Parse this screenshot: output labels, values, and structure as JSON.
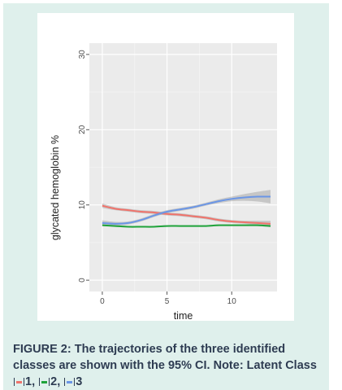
{
  "chart_data": {
    "type": "line",
    "xlabel": "time",
    "ylabel": "glycated hemoglobin %",
    "xlim": [
      -1,
      13.5
    ],
    "ylim": [
      -1.5,
      31.5
    ],
    "xticks": [
      0,
      5,
      10
    ],
    "yticks": [
      0,
      10,
      20,
      30
    ],
    "grid": true,
    "confidence_band": "95% CI",
    "series": [
      {
        "name": "1",
        "color": "#f0736b",
        "x": [
          0,
          1,
          2,
          3,
          4,
          5,
          6,
          7,
          8,
          9,
          10,
          11,
          12,
          13
        ],
        "values": [
          9.9,
          9.5,
          9.3,
          9.1,
          9.0,
          8.8,
          8.7,
          8.5,
          8.3,
          8.0,
          7.8,
          7.7,
          7.6,
          7.5
        ],
        "ci_halfwidth": [
          0.3,
          0.2,
          0.2,
          0.2,
          0.2,
          0.2,
          0.2,
          0.2,
          0.2,
          0.2,
          0.2,
          0.2,
          0.3,
          0.4
        ]
      },
      {
        "name": "2",
        "color": "#1fa33a",
        "x": [
          0,
          1,
          2,
          3,
          4,
          5,
          6,
          7,
          8,
          9,
          10,
          11,
          12,
          13
        ],
        "values": [
          7.3,
          7.2,
          7.1,
          7.1,
          7.1,
          7.2,
          7.2,
          7.2,
          7.2,
          7.3,
          7.3,
          7.3,
          7.3,
          7.2
        ],
        "ci_halfwidth": [
          0.1,
          0.1,
          0.1,
          0.1,
          0.1,
          0.1,
          0.1,
          0.1,
          0.1,
          0.1,
          0.1,
          0.1,
          0.1,
          0.15
        ]
      },
      {
        "name": "3",
        "color": "#6b96e6",
        "x": [
          0,
          1,
          2,
          3,
          4,
          5,
          6,
          7,
          8,
          9,
          10,
          11,
          12,
          13
        ],
        "values": [
          7.6,
          7.5,
          7.6,
          8.0,
          8.6,
          9.1,
          9.4,
          9.7,
          10.1,
          10.5,
          10.8,
          11.0,
          11.1,
          11.1
        ],
        "ci_halfwidth": [
          0.35,
          0.25,
          0.2,
          0.2,
          0.2,
          0.2,
          0.2,
          0.2,
          0.2,
          0.25,
          0.3,
          0.45,
          0.65,
          0.9
        ]
      }
    ]
  },
  "caption": {
    "lead": "FIGURE 2: The trajectories of the three identified classes are shown with the 95% CI. Note: Latent Class ",
    "items": [
      {
        "label": "1",
        "sep": ", ",
        "color": "#f0736b"
      },
      {
        "label": "2",
        "sep": ", ",
        "color": "#1fa33a"
      },
      {
        "label": "3",
        "sep": "",
        "color": "#6b96e6"
      }
    ]
  }
}
